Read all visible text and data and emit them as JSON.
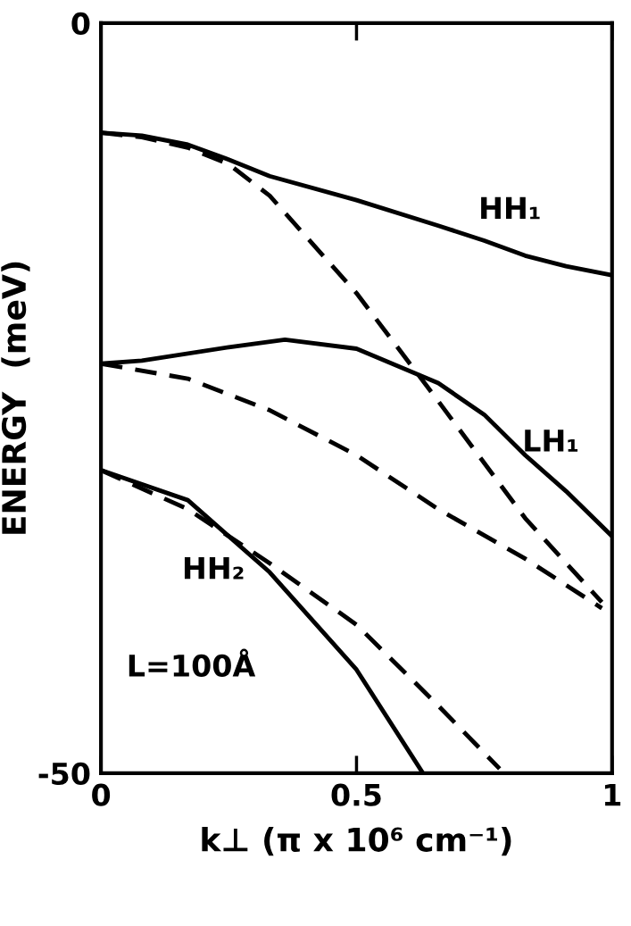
{
  "chart_data": {
    "type": "line",
    "xlabel": "k⊥ (π x 10⁶ cm⁻¹)",
    "ylabel": "ENERGY  (meV)",
    "xlim": [
      0,
      1
    ],
    "ylim": [
      -50,
      0
    ],
    "xticks": [
      0,
      0.5,
      1
    ],
    "yticks": [
      0,
      -50
    ],
    "grid": false,
    "legend": false,
    "marker": "none",
    "series": [
      {
        "color": "#000000",
        "line_style": "solid",
        "x": [
          0,
          0.08,
          0.17,
          0.25,
          0.33,
          0.5,
          0.66,
          0.75,
          0.83,
          0.91,
          1.0
        ],
        "values": [
          -7.3,
          -7.5,
          -8.1,
          -9.1,
          -10.2,
          -11.8,
          -13.5,
          -14.5,
          -15.5,
          -16.2,
          -16.8
        ]
      },
      {
        "color": "#000000",
        "line_style": "dashed",
        "x": [
          0,
          0.08,
          0.17,
          0.25,
          0.33,
          0.5,
          0.66,
          0.83,
          0.98
        ],
        "values": [
          -7.3,
          -7.6,
          -8.3,
          -9.4,
          -11.5,
          -18,
          -25.2,
          -33,
          -38.6
        ]
      },
      {
        "color": "#000000",
        "line_style": "solid",
        "x": [
          0,
          0.08,
          0.25,
          0.36,
          0.5,
          0.66,
          0.75,
          0.83,
          0.91,
          1.0
        ],
        "values": [
          -22.7,
          -22.5,
          -21.6,
          -21.1,
          -21.7,
          -24,
          -26.1,
          -28.8,
          -31.2,
          -34.2
        ]
      },
      {
        "color": "#000000",
        "line_style": "dashed",
        "x": [
          0,
          0.17,
          0.33,
          0.5,
          0.66,
          0.83,
          0.98
        ],
        "values": [
          -22.7,
          -23.7,
          -25.8,
          -28.8,
          -32.4,
          -35.7,
          -39
        ]
      },
      {
        "color": "#000000",
        "line_style": "solid",
        "x": [
          0,
          0.17,
          0.33,
          0.5,
          0.63
        ],
        "values": [
          -29.8,
          -31.8,
          -36.6,
          -43.1,
          -50
        ]
      },
      {
        "color": "#000000",
        "line_style": "dashed",
        "x": [
          0,
          0.17,
          0.33,
          0.5,
          0.66,
          0.78
        ],
        "values": [
          -29.8,
          -32.4,
          -36,
          -40.1,
          -45.5,
          -49.7
        ]
      }
    ],
    "annotations": [
      "HH₁",
      "LH₁",
      "HH₂",
      "L=100Å"
    ]
  }
}
